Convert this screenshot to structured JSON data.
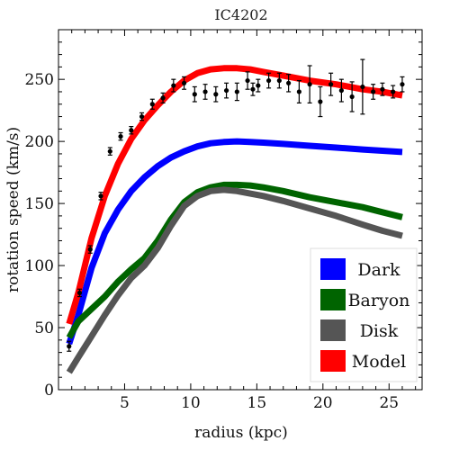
{
  "chart_data": {
    "type": "line",
    "title": "IC4202",
    "xlabel": "radius (kpc)",
    "ylabel": "rotation speed (km/s)",
    "xlim": [
      0,
      27.5
    ],
    "ylim": [
      0,
      290
    ],
    "xticks": [
      5,
      10,
      15,
      20,
      25
    ],
    "xtick_labels": [
      "5",
      "10",
      "15",
      "20",
      "25"
    ],
    "yticks": [
      0,
      50,
      100,
      150,
      200,
      250
    ],
    "ytick_labels": [
      "0",
      "50",
      "100",
      "150",
      "200",
      "250"
    ],
    "grid": false,
    "legend_position": "bottom-right",
    "series": [
      {
        "name": "Dark",
        "color": "#0000ff",
        "x": [
          0.8,
          1.5,
          2.5,
          3.5,
          4.5,
          5.5,
          6.5,
          7.5,
          8.5,
          9.5,
          10.5,
          11.5,
          12.5,
          13.5,
          14.5,
          15.5,
          17,
          19,
          21,
          23,
          24.5,
          26
        ],
        "y": [
          37,
          60,
          98,
          126,
          145,
          160,
          171,
          180,
          187,
          192,
          196,
          198.5,
          199.5,
          200,
          199.5,
          199,
          198,
          196.5,
          195,
          193.5,
          192.5,
          191.5
        ]
      },
      {
        "name": "Baryon",
        "color": "#006400",
        "x": [
          0.8,
          1.5,
          2.5,
          3.5,
          4.5,
          5.5,
          6.5,
          7.5,
          8.5,
          9.5,
          10.5,
          11.5,
          12.5,
          13.5,
          14.5,
          15.5,
          17,
          19,
          21,
          23,
          24.5,
          26
        ],
        "y": [
          42,
          55,
          65,
          75,
          87,
          97,
          106,
          120,
          137,
          151,
          159,
          163,
          165,
          165,
          164.5,
          163,
          160,
          155,
          151,
          147,
          143,
          139
        ]
      },
      {
        "name": "Disk",
        "color": "#555555",
        "x": [
          0.8,
          1.5,
          2.5,
          3.5,
          4.5,
          5.5,
          6.5,
          7.5,
          8.5,
          9.5,
          10.5,
          11.5,
          12.5,
          13.5,
          14.5,
          15.5,
          17,
          19,
          21,
          23,
          24.5,
          26
        ],
        "y": [
          14,
          26,
          43,
          60,
          76,
          90,
          100,
          114,
          132,
          148,
          156,
          160,
          161,
          160,
          158,
          156,
          152,
          146,
          140,
          133,
          128,
          124
        ]
      },
      {
        "name": "Model",
        "color": "#ff0000",
        "x": [
          0.8,
          1.5,
          2.5,
          3.5,
          4.5,
          5.5,
          6.5,
          7.5,
          8.5,
          9.5,
          10.5,
          11.5,
          12.5,
          13.5,
          14.5,
          15.5,
          17,
          19,
          21,
          23,
          24.5,
          26
        ],
        "y": [
          53,
          78,
          122,
          156,
          182,
          202,
          217,
          229,
          240,
          249,
          255,
          258,
          259,
          259,
          258,
          256,
          253,
          249,
          246,
          242,
          240,
          237
        ]
      }
    ],
    "data_points": {
      "x": [
        0.8,
        1.6,
        2.4,
        3.2,
        3.9,
        4.7,
        5.5,
        6.3,
        7.1,
        7.9,
        8.7,
        9.5,
        10.3,
        11.1,
        11.9,
        12.7,
        13.5,
        14.3,
        14.7,
        15.1,
        15.9,
        16.7,
        17.4,
        18.2,
        19.0,
        19.8,
        20.6,
        21.4,
        22.2,
        23.0,
        23.8,
        24.5,
        25.3,
        26.0
      ],
      "y": [
        35,
        78,
        113,
        156,
        192,
        204,
        209,
        220,
        230,
        235,
        245,
        247,
        238,
        240,
        238,
        241,
        240,
        249,
        242,
        245,
        249,
        249,
        247,
        240,
        246,
        232,
        246,
        241,
        236,
        244,
        240,
        242,
        240,
        246
      ],
      "err": [
        4,
        3,
        3,
        3,
        3,
        3,
        3,
        3,
        4,
        4,
        5,
        5,
        6,
        6,
        6,
        6,
        7,
        7,
        5,
        5,
        6,
        6,
        7,
        9,
        15,
        12,
        9,
        9,
        12,
        22,
        6,
        5,
        5,
        6
      ]
    }
  }
}
